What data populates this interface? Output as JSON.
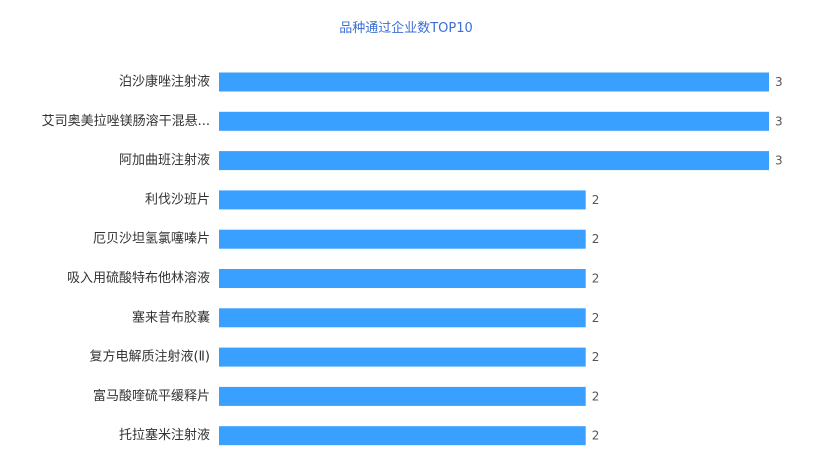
{
  "chart_data": {
    "type": "bar",
    "orientation": "horizontal",
    "title": "品种通过企业数TOP10",
    "categories": [
      "泊沙康唑注射液",
      "艾司奥美拉唑镁肠溶干混悬...",
      "阿加曲班注射液",
      "利伐沙班片",
      "厄贝沙坦氢氯噻嗪片",
      "吸入用硫酸特布他林溶液",
      "塞来昔布胶囊",
      "复方电解质注射液(Ⅱ)",
      "富马酸喹硫平缓释片",
      "托拉塞米注射液"
    ],
    "values": [
      3,
      3,
      3,
      2,
      2,
      2,
      2,
      2,
      2,
      2
    ],
    "xlim": [
      0,
      3
    ],
    "grid": false,
    "legend": "none",
    "bar_color": "#3aa0ff",
    "title_color": "#3b6fd4"
  }
}
